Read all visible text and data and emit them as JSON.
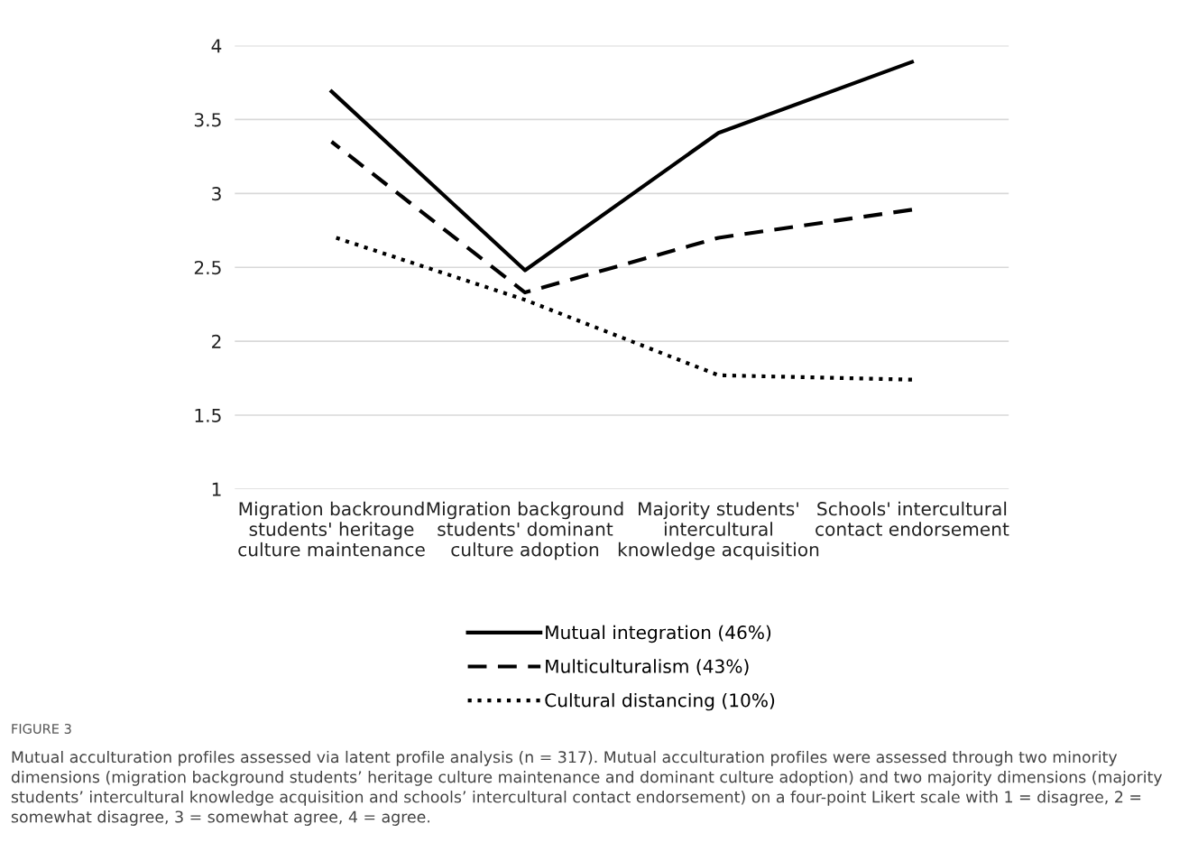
{
  "chart_data": {
    "type": "line",
    "categories": [
      "Migration backround\nstudents' heritage\nculture maintenance",
      "Migration background\nstudents' dominant\nculture adoption",
      "Majority students'\nintercultural\nknowledge acquisition",
      "Schools' intercultural\ncontact endorsement"
    ],
    "series": [
      {
        "name": "Mutual integration (46%)",
        "color": "#000000",
        "line_style": "solid",
        "values": [
          3.69,
          2.48,
          3.41,
          3.89
        ]
      },
      {
        "name": "Multiculturalism (43%)",
        "color": "#000000",
        "line_style": "dashed",
        "values": [
          3.35,
          2.33,
          2.7,
          2.89
        ]
      },
      {
        "name": "Cultural distancing (10%)",
        "color": "#000000",
        "line_style": "dotted",
        "values": [
          2.71,
          2.28,
          1.77,
          1.74
        ]
      }
    ],
    "ylim": [
      1,
      4
    ],
    "yticks": [
      1,
      1.5,
      2,
      2.5,
      3,
      3.5,
      4
    ],
    "grid": "y",
    "legend": "bottom",
    "marker": "none",
    "annotations": [
      "FIGURE 3",
      "Mutual acculturation profiles assessed via latent profile analysis (n = 317). Mutual acculturation profiles were assessed through two minority dimensions (migration background students’ heritage culture maintenance and dominant culture adoption) and two majority dimensions (majority students’ intercultural knowledge acquisition and schools’ intercultural contact endorsement) on a four-point Likert scale with 1 = disagree, 2 = somewhat disagree, 3 = somewhat agree, 4 = agree."
    ]
  }
}
